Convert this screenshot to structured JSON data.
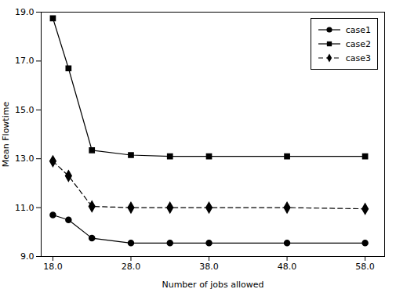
{
  "chart_data": {
    "type": "line",
    "x": [
      18,
      20,
      23,
      28,
      33,
      38,
      48,
      58
    ],
    "series": [
      {
        "name": "case1",
        "color": "#000000",
        "marker": "circle",
        "line_style": "solid",
        "values": [
          10.7,
          10.5,
          9.75,
          9.55,
          9.55,
          9.55,
          9.55,
          9.55
        ]
      },
      {
        "name": "case2",
        "color": "#000000",
        "marker": "square",
        "line_style": "solid",
        "values": [
          18.75,
          16.7,
          13.35,
          13.15,
          13.1,
          13.1,
          13.1,
          13.1
        ]
      },
      {
        "name": "case3",
        "color": "#000000",
        "marker": "diamond",
        "line_style": "dashed",
        "values": [
          12.9,
          12.3,
          11.05,
          11.0,
          11.0,
          11.0,
          11.0,
          10.95
        ]
      }
    ],
    "xlabel": "Number of jobs allowed",
    "ylabel": "Mean Flowtime",
    "xlim": [
      16.5,
      60.5
    ],
    "ylim": [
      9.0,
      19.0
    ],
    "xticks": [
      {
        "value": 18,
        "label": "18.0"
      },
      {
        "value": 28,
        "label": "28.0"
      },
      {
        "value": 38,
        "label": "38.0"
      },
      {
        "value": 48,
        "label": "48.0"
      },
      {
        "value": 58,
        "label": "58.0"
      }
    ],
    "yticks": [
      {
        "value": 9,
        "label": "9.0"
      },
      {
        "value": 11,
        "label": "11.0"
      },
      {
        "value": 13,
        "label": "13.0"
      },
      {
        "value": 15,
        "label": "15.0"
      },
      {
        "value": 17,
        "label": "17.0"
      },
      {
        "value": 19,
        "label": "19.0"
      }
    ],
    "legend": "upper right"
  }
}
